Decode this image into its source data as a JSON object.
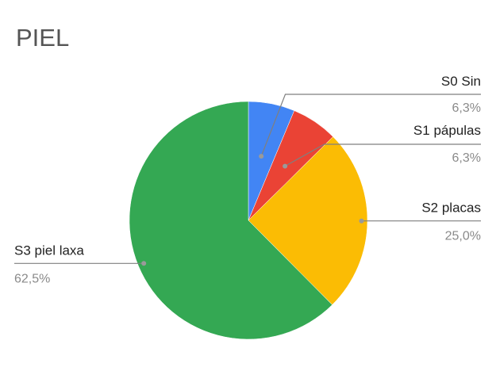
{
  "chart_data": {
    "type": "pie",
    "title": "PIEL",
    "slices": [
      {
        "label": "S0 Sin",
        "value": 6.3,
        "value_label": "6,3%",
        "color": "#4285F4"
      },
      {
        "label": "S1 pápulas",
        "value": 6.3,
        "value_label": "6,3%",
        "color": "#EA4335"
      },
      {
        "label": "S2 placas",
        "value": 25.0,
        "value_label": "25,0%",
        "color": "#FBBC04"
      },
      {
        "label": "S3 piel laxa",
        "value": 62.5,
        "value_label": "62,5%",
        "color": "#34A853"
      }
    ],
    "start_angle": "12 o'clock",
    "direction": "clockwise",
    "legend": "none (labels with leader lines)"
  }
}
